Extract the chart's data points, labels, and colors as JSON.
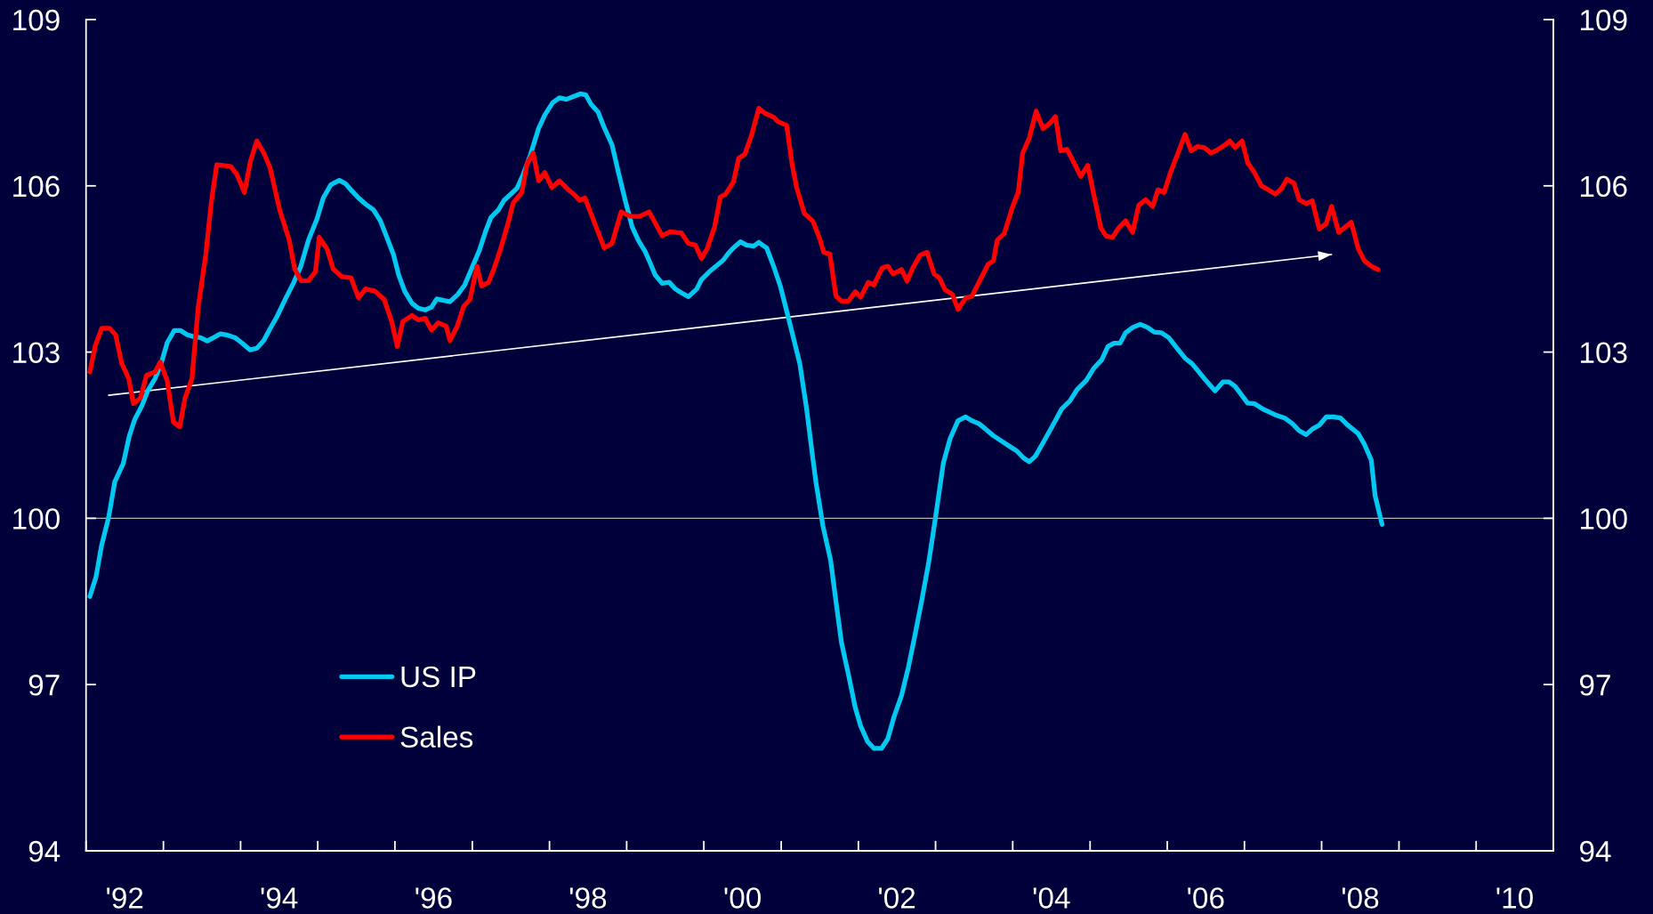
{
  "chart_data": {
    "type": "line",
    "xlim": [
      "1992-01-01",
      "2011-01-01"
    ],
    "xticks": [
      {
        "value": "1992-01-01",
        "label": null
      },
      {
        "value": "1993-01-01",
        "label": null
      },
      {
        "value": "1994-01-01",
        "label": null
      },
      {
        "value": "1995-01-01",
        "label": null
      },
      {
        "value": "1996-01-01",
        "label": null
      },
      {
        "value": "1997-01-01",
        "label": null
      },
      {
        "value": "1998-01-01",
        "label": null
      },
      {
        "value": "1999-01-01",
        "label": null
      },
      {
        "value": "2000-01-01",
        "label": null
      },
      {
        "value": "2001-01-01",
        "label": null
      },
      {
        "value": "2002-01-01",
        "label": null
      },
      {
        "value": "2003-01-01",
        "label": null
      },
      {
        "value": "2004-01-01",
        "label": null
      },
      {
        "value": "2005-01-01",
        "label": null
      },
      {
        "value": "2006-01-01",
        "label": null
      },
      {
        "value": "2007-01-01",
        "label": null
      },
      {
        "value": "2008-01-01",
        "label": null
      },
      {
        "value": "2009-01-01",
        "label": null
      },
      {
        "value": "2010-01-01",
        "label": null
      },
      {
        "value": "2011-01-01",
        "label": null
      },
      {
        "value": "1992-07-02",
        "label": "'92"
      },
      {
        "value": "1994-07-02",
        "label": "'94"
      },
      {
        "value": "1996-07-02",
        "label": "'96"
      },
      {
        "value": "1998-07-02",
        "label": "'98"
      },
      {
        "value": "2000-07-02",
        "label": "'00"
      },
      {
        "value": "2002-07-02",
        "label": "'02"
      },
      {
        "value": "2004-07-02",
        "label": "'04"
      },
      {
        "value": "2006-07-02",
        "label": "'06"
      },
      {
        "value": "2008-07-02",
        "label": "'08"
      },
      {
        "value": "2010-07-02",
        "label": "'10"
      }
    ],
    "ylim": [
      94,
      109
    ],
    "yticks": [
      94,
      97,
      100,
      103,
      106,
      109
    ],
    "y2lim": [
      94,
      109
    ],
    "y2ticks": [
      94,
      97,
      100,
      103,
      106,
      109
    ],
    "ref_lines": [
      {
        "axis": "y",
        "value": 100,
        "color": "#b4b4b4"
      }
    ],
    "legend": "bottom left",
    "series": [
      {
        "name": "US IP",
        "color": "#00c8f0",
        "x": [
          "1992-01-19",
          "1992-02-17",
          "1992-03-15",
          "1992-04-17",
          "1992-05-16",
          "1992-06-25",
          "1992-07-24",
          "1992-08-19",
          "1992-09-21",
          "1992-10-20",
          "1992-11-22",
          "1992-12-21",
          "1993-01-19",
          "1993-02-21",
          "1993-03-22",
          "1993-04-24",
          "1993-05-23",
          "1993-06-25",
          "1993-07-28",
          "1993-08-26",
          "1993-09-28",
          "1993-10-27",
          "1993-12-06",
          "1994-01-12",
          "1994-02-14",
          "1994-03-19",
          "1994-04-21",
          "1994-05-20",
          "1994-06-22",
          "1994-08-01",
          "1994-09-10",
          "1994-10-13",
          "1994-11-18",
          "1994-12-28",
          "1995-01-27",
          "1995-03-04",
          "1995-04-13",
          "1995-05-12",
          "1995-06-11",
          "1995-07-13",
          "1995-08-15",
          "1995-09-21",
          "1995-10-24",
          "1995-11-22",
          "1995-12-25",
          "1996-01-19",
          "1996-02-17",
          "1996-03-22",
          "1996-04-21",
          "1996-05-23",
          "1996-06-22",
          "1996-07-17",
          "1996-08-19",
          "1996-09-17",
          "1996-10-24",
          "1996-11-26",
          "1996-12-28",
          "1997-02-03",
          "1997-03-04",
          "1997-03-30",
          "1997-05-05",
          "1997-05-31",
          "1997-07-02",
          "1997-08-01",
          "1997-08-30",
          "1997-10-02",
          "1997-11-11",
          "1997-12-10",
          "1998-01-16",
          "1998-02-17",
          "1998-03-22",
          "1998-04-24",
          "1998-05-27",
          "1998-06-22",
          "1998-07-17",
          "1998-08-19",
          "1998-09-17",
          "1998-10-24",
          "1998-11-22",
          "1998-12-25",
          "1999-01-27",
          "1999-02-25",
          "1999-03-30",
          "1999-04-21",
          "1999-05-16",
          "1999-06-18",
          "1999-07-21",
          "1999-08-19",
          "1999-09-17",
          "1999-10-20",
          "1999-11-29",
          "1999-12-21",
          "2000-01-27",
          "2000-03-08",
          "2000-04-02",
          "2000-04-28",
          "2000-05-20",
          "2000-06-22",
          "2000-07-21",
          "2000-08-23",
          "2000-09-17",
          "2000-10-24",
          "2000-11-26",
          "2000-12-28",
          "2001-01-27",
          "2001-02-21",
          "2001-03-30",
          "2001-05-01",
          "2001-05-31",
          "2001-06-14",
          "2001-07-17",
          "2001-08-23",
          "2001-09-17",
          "2001-10-13",
          "2001-11-15",
          "2001-12-17",
          "2002-01-12",
          "2002-02-14",
          "2002-03-15",
          "2002-04-21",
          "2002-05-20",
          "2002-06-18",
          "2002-07-24",
          "2002-08-26",
          "2002-09-24",
          "2002-10-27",
          "2002-11-29",
          "2003-01-01",
          "2003-02-07",
          "2003-03-11",
          "2003-04-17",
          "2003-05-23",
          "2003-06-22",
          "2003-07-24",
          "2003-08-26",
          "2003-10-02",
          "2003-11-11",
          "2003-12-17",
          "2004-01-19",
          "2004-02-21",
          "2004-03-19",
          "2004-04-17",
          "2004-05-23",
          "2004-07-06",
          "2004-08-19",
          "2004-09-28",
          "2004-10-31",
          "2004-12-14",
          "2005-01-19",
          "2005-02-25",
          "2005-03-26",
          "2005-04-24",
          "2005-05-23",
          "2005-06-18",
          "2005-07-24",
          "2005-08-26",
          "2005-09-28",
          "2005-10-31",
          "2005-12-03",
          "2006-01-08",
          "2006-02-14",
          "2006-03-26",
          "2006-04-28",
          "2006-05-31",
          "2006-07-02",
          "2006-08-15",
          "2006-09-21",
          "2006-10-20",
          "2006-11-18",
          "2006-12-14",
          "2007-01-16",
          "2007-02-17",
          "2007-03-30",
          "2007-04-28",
          "2007-05-31",
          "2007-07-10",
          "2007-08-15",
          "2007-09-17",
          "2007-10-20",
          "2007-11-18",
          "2007-12-21",
          "2008-01-23",
          "2008-02-25",
          "2008-03-30",
          "2008-05-01",
          "2008-06-22",
          "2008-07-21",
          "2008-08-23",
          "2008-09-10",
          "2008-10-13"
        ],
        "values": [
          98.59,
          98.94,
          99.52,
          100.02,
          100.66,
          100.99,
          101.49,
          101.79,
          102.03,
          102.31,
          102.52,
          102.79,
          103.17,
          103.39,
          103.39,
          103.31,
          103.28,
          103.26,
          103.2,
          103.26,
          103.33,
          103.31,
          103.26,
          103.15,
          103.04,
          103.07,
          103.21,
          103.42,
          103.64,
          103.96,
          104.26,
          104.55,
          105.02,
          105.4,
          105.78,
          106.02,
          106.1,
          106.04,
          105.91,
          105.78,
          105.67,
          105.57,
          105.37,
          105.09,
          104.76,
          104.39,
          104.09,
          103.88,
          103.79,
          103.76,
          103.81,
          103.96,
          103.93,
          103.91,
          104.04,
          104.21,
          104.5,
          104.83,
          105.17,
          105.43,
          105.57,
          105.74,
          105.85,
          105.96,
          106.21,
          106.55,
          107.04,
          107.28,
          107.5,
          107.59,
          107.56,
          107.61,
          107.66,
          107.64,
          107.47,
          107.33,
          107.05,
          106.74,
          106.26,
          105.74,
          105.26,
          105.02,
          104.81,
          104.62,
          104.39,
          104.24,
          104.26,
          104.14,
          104.07,
          104.0,
          104.14,
          104.31,
          104.45,
          104.58,
          104.66,
          104.79,
          104.88,
          104.99,
          104.93,
          104.91,
          104.98,
          104.88,
          104.55,
          104.19,
          103.74,
          103.36,
          102.79,
          101.98,
          101.07,
          100.66,
          99.87,
          99.24,
          98.5,
          97.76,
          97.18,
          96.59,
          96.25,
          95.97,
          95.85,
          95.85,
          96.02,
          96.41,
          96.8,
          97.32,
          97.86,
          98.5,
          99.19,
          100.02,
          101.0,
          101.44,
          101.76,
          101.83,
          101.76,
          101.71,
          101.61,
          101.49,
          101.39,
          101.3,
          101.22,
          101.09,
          101.02,
          101.12,
          101.36,
          101.66,
          101.97,
          102.12,
          102.32,
          102.49,
          102.71,
          102.86,
          103.1,
          103.16,
          103.16,
          103.35,
          103.45,
          103.5,
          103.45,
          103.36,
          103.35,
          103.26,
          103.08,
          102.89,
          102.79,
          102.64,
          102.49,
          102.3,
          102.46,
          102.46,
          102.38,
          102.25,
          102.08,
          102.07,
          101.97,
          101.92,
          101.86,
          101.81,
          101.71,
          101.58,
          101.51,
          101.61,
          101.68,
          101.83,
          101.83,
          101.81,
          101.69,
          101.53,
          101.34,
          101.05,
          100.41,
          99.89
        ]
      },
      {
        "name": "Sales",
        "color": "#ff0000",
        "x": [
          "1992-01-19",
          "1992-02-14",
          "1992-03-15",
          "1992-04-21",
          "1992-05-20",
          "1992-06-18",
          "1992-07-21",
          "1992-08-12",
          "1992-09-14",
          "1992-10-13",
          "1992-11-22",
          "1992-12-17",
          "1993-01-19",
          "1993-02-17",
          "1993-03-19",
          "1993-04-13",
          "1993-05-16",
          "1993-06-14",
          "1993-07-21",
          "1993-08-15",
          "1993-09-10",
          "1993-10-09",
          "1993-11-15",
          "1993-12-14",
          "1994-01-19",
          "1994-02-17",
          "1994-03-19",
          "1994-04-21",
          "1994-05-20",
          "1994-07-06",
          "1994-08-19",
          "1994-09-14",
          "1994-10-13",
          "1994-11-18",
          "1994-12-21",
          "1995-01-08",
          "1995-02-14",
          "1995-03-15",
          "1995-04-24",
          "1995-06-07",
          "1995-07-13",
          "1995-08-15",
          "1995-09-28",
          "1995-11-11",
          "1995-12-17",
          "1996-01-12",
          "1996-02-07",
          "1996-03-22",
          "1996-04-21",
          "1996-05-23",
          "1996-06-22",
          "1996-07-24",
          "1996-08-30",
          "1996-09-17",
          "1996-10-20",
          "1996-11-22",
          "1996-12-21",
          "1997-01-23",
          "1997-02-14",
          "1997-03-19",
          "1997-04-13",
          "1997-05-12",
          "1997-06-18",
          "1997-07-13",
          "1997-08-23",
          "1997-09-17",
          "1997-10-16",
          "1997-11-11",
          "1997-12-10",
          "1998-01-12",
          "1998-02-17",
          "1998-03-26",
          "1998-05-01",
          "1998-05-23",
          "1998-06-18",
          "1998-07-21",
          "1998-09-17",
          "1998-10-24",
          "1998-12-06",
          "1999-01-19",
          "1999-03-04",
          "1999-04-17",
          "1999-06-18",
          "1999-07-24",
          "1999-09-17",
          "1999-10-20",
          "1999-11-22",
          "1999-12-21",
          "2000-01-16",
          "2000-02-21",
          "2000-03-19",
          "2000-04-13",
          "2000-05-20",
          "2000-06-14",
          "2000-07-13",
          "2000-08-15",
          "2000-09-17",
          "2000-10-16",
          "2000-11-26",
          "2000-12-17",
          "2001-01-27",
          "2001-02-21",
          "2001-03-15",
          "2001-04-21",
          "2001-05-31",
          "2001-07-02",
          "2001-07-21",
          "2001-08-19",
          "2001-09-17",
          "2001-10-13",
          "2001-11-15",
          "2001-12-17",
          "2002-01-12",
          "2002-02-17",
          "2002-03-15",
          "2002-04-24",
          "2002-05-20",
          "2002-06-14",
          "2002-07-24",
          "2002-08-19",
          "2002-09-17",
          "2002-10-20",
          "2002-11-22",
          "2002-12-25",
          "2003-01-19",
          "2003-02-14",
          "2003-03-22",
          "2003-04-17",
          "2003-05-23",
          "2003-06-22",
          "2003-08-01",
          "2003-09-06",
          "2003-10-02",
          "2003-10-20",
          "2003-11-22",
          "2004-01-01",
          "2004-01-27",
          "2004-02-17",
          "2004-03-19",
          "2004-04-21",
          "2004-05-23",
          "2004-06-25",
          "2004-07-21",
          "2004-08-15",
          "2004-09-14",
          "2004-10-16",
          "2004-11-18",
          "2004-12-21",
          "2005-01-19",
          "2005-02-21",
          "2005-03-19",
          "2005-04-17",
          "2005-05-16",
          "2005-06-18",
          "2005-07-21",
          "2005-08-19",
          "2005-09-21",
          "2005-10-24",
          "2005-11-18",
          "2005-12-17",
          "2006-01-16",
          "2006-02-25",
          "2006-03-26",
          "2006-04-24",
          "2006-05-23",
          "2006-06-25",
          "2006-07-28",
          "2006-08-30",
          "2006-09-28",
          "2006-10-24",
          "2006-11-18",
          "2006-12-21",
          "2007-01-16",
          "2007-02-17",
          "2007-03-22",
          "2007-04-24",
          "2007-05-27",
          "2007-06-25",
          "2007-07-21",
          "2007-08-23",
          "2007-09-17",
          "2007-10-20",
          "2007-11-18",
          "2007-12-21",
          "2008-01-23",
          "2008-02-17",
          "2008-03-22",
          "2008-04-17",
          "2008-05-20",
          "2008-06-22",
          "2008-07-21",
          "2008-08-23",
          "2008-09-24"
        ],
        "values": [
          102.64,
          103.12,
          103.43,
          103.43,
          103.31,
          102.79,
          102.52,
          102.07,
          102.17,
          102.58,
          102.64,
          102.82,
          102.48,
          101.74,
          101.65,
          102.17,
          102.52,
          103.79,
          104.78,
          105.69,
          106.38,
          106.37,
          106.35,
          106.21,
          105.88,
          106.45,
          106.81,
          106.59,
          106.33,
          105.55,
          105.02,
          104.5,
          104.29,
          104.29,
          104.45,
          105.07,
          104.86,
          104.5,
          104.36,
          104.34,
          103.98,
          104.14,
          104.1,
          103.95,
          103.55,
          103.1,
          103.55,
          103.66,
          103.58,
          103.61,
          103.4,
          103.53,
          103.47,
          103.21,
          103.45,
          103.83,
          103.95,
          104.55,
          104.19,
          104.26,
          104.5,
          104.83,
          105.31,
          105.69,
          105.88,
          106.4,
          106.59,
          106.09,
          106.24,
          105.97,
          106.09,
          105.95,
          105.83,
          105.74,
          105.78,
          105.45,
          104.88,
          104.96,
          105.53,
          105.45,
          105.45,
          105.53,
          105.1,
          105.17,
          105.15,
          104.96,
          104.93,
          104.69,
          104.86,
          105.26,
          105.8,
          105.85,
          106.07,
          106.5,
          106.57,
          106.93,
          107.4,
          107.31,
          107.24,
          107.16,
          107.09,
          106.4,
          105.97,
          105.5,
          105.36,
          105.05,
          104.8,
          104.77,
          104.01,
          103.92,
          103.92,
          104.09,
          103.99,
          104.26,
          104.21,
          104.52,
          104.55,
          104.41,
          104.49,
          104.28,
          104.53,
          104.75,
          104.8,
          104.41,
          104.34,
          104.13,
          104.04,
          103.77,
          103.97,
          104.01,
          104.31,
          104.58,
          104.65,
          105.02,
          105.14,
          105.63,
          105.88,
          106.59,
          106.86,
          107.35,
          107.03,
          107.13,
          107.25,
          106.63,
          106.66,
          106.42,
          106.17,
          106.37,
          105.83,
          105.24,
          105.09,
          105.07,
          105.24,
          105.37,
          105.16,
          105.65,
          105.75,
          105.63,
          105.93,
          105.88,
          106.24,
          106.63,
          106.93,
          106.63,
          106.71,
          106.69,
          106.59,
          106.66,
          106.73,
          106.81,
          106.69,
          106.81,
          106.42,
          106.24,
          106.0,
          105.93,
          105.85,
          105.95,
          106.12,
          106.05,
          105.75,
          105.68,
          105.73,
          105.22,
          105.32,
          105.63,
          105.16,
          105.24,
          105.34,
          104.87,
          104.65,
          104.55,
          104.49
        ]
      },
      {
        "type": "line",
        "color": "#ffffff",
        "x": [
          "1992-04-17",
          "2008-02-17"
        ],
        "values": [
          102.22,
          104.76
        ]
      }
    ]
  }
}
